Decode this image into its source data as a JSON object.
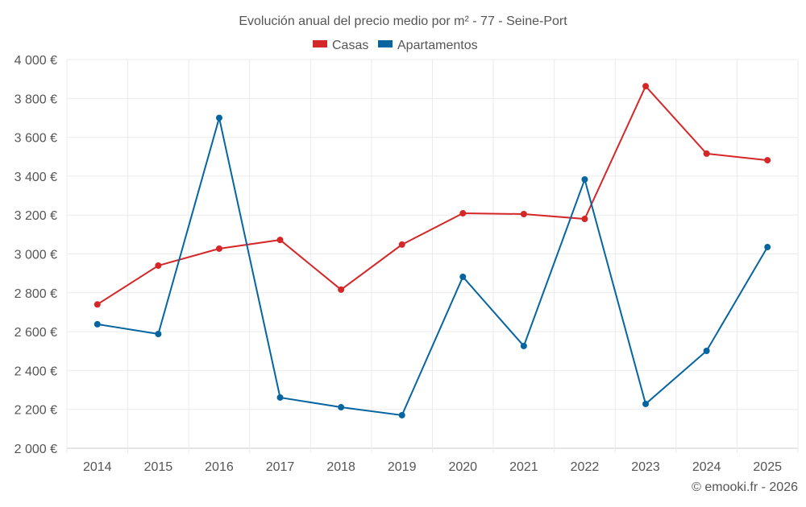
{
  "chart_data": {
    "type": "line",
    "title": "Evolución anual del precio medio por m² - 77 - Seine-Port",
    "xlabel": "",
    "ylabel": "",
    "categories": [
      "2014",
      "2015",
      "2016",
      "2017",
      "2018",
      "2019",
      "2020",
      "2021",
      "2022",
      "2023",
      "2024",
      "2025"
    ],
    "ylim": [
      2000,
      4000
    ],
    "yticks": [
      2000,
      2200,
      2400,
      2600,
      2800,
      3000,
      3200,
      3400,
      3600,
      3800,
      4000
    ],
    "ytick_labels": [
      "2 000 €",
      "2 200 €",
      "2 400 €",
      "2 600 €",
      "2 800 €",
      "3 000 €",
      "3 200 €",
      "3 400 €",
      "3 600 €",
      "3 800 €",
      "4 000 €"
    ],
    "grid": true,
    "legend_position": "top-center",
    "series": [
      {
        "name": "Casas",
        "color": "#d62728",
        "values": [
          2740,
          2940,
          3027,
          3072,
          2816,
          3048,
          3209,
          3205,
          3180,
          3863,
          3516,
          3482
        ]
      },
      {
        "name": "Apartamentos",
        "color": "#0565a0",
        "values": [
          2638,
          2588,
          3700,
          2261,
          2211,
          2170,
          2882,
          2526,
          3383,
          2228,
          2501,
          3035
        ]
      }
    ],
    "credit": "© emooki.fr - 2026"
  }
}
